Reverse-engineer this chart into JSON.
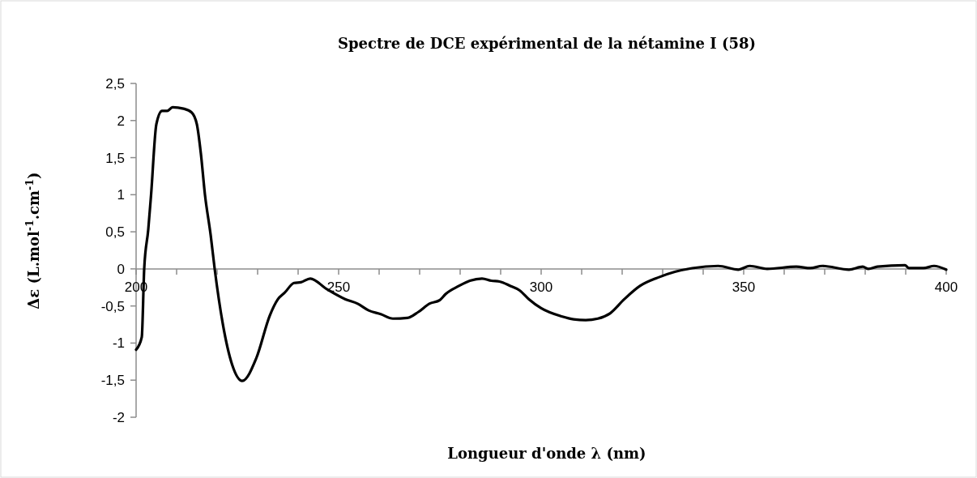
{
  "chart_data": {
    "type": "line",
    "title": "Spectre de DCE expérimental de la nétamine I (58)",
    "xlabel": "Longueur d'onde λ (nm)",
    "ylabel": "Δε (L.mol$^{-1}$.cm$^{-1}$)",
    "xlim": [
      200,
      400
    ],
    "xticks": [
      200,
      {
        "value": 210,
        "label": null
      },
      {
        "value": 220,
        "label": null
      },
      {
        "value": 230,
        "label": null
      },
      {
        "value": 240,
        "label": null
      },
      250,
      {
        "value": 260,
        "label": null
      },
      {
        "value": 270,
        "label": null
      },
      {
        "value": 280,
        "label": null
      },
      {
        "value": 290,
        "label": null
      },
      300,
      {
        "value": 310,
        "label": null
      },
      {
        "value": 320,
        "label": null
      },
      {
        "value": 330,
        "label": null
      },
      {
        "value": 340,
        "label": null
      },
      350,
      {
        "value": 360,
        "label": null
      },
      {
        "value": 370,
        "label": null
      },
      {
        "value": 380,
        "label": null
      },
      {
        "value": 390,
        "label": null
      },
      400
    ],
    "ylim": [
      -2,
      2.5
    ],
    "yticks": [
      {
        "value": -2,
        "label": "-2"
      },
      {
        "value": -1.5,
        "label": "-1,5"
      },
      {
        "value": -1,
        "label": "-1"
      },
      {
        "value": -0.5,
        "label": "-0,5"
      },
      {
        "value": 0,
        "label": "0"
      },
      {
        "value": 0.5,
        "label": "0,5"
      },
      {
        "value": 1,
        "label": "1"
      },
      {
        "value": 1.5,
        "label": "1,5"
      },
      {
        "value": 2,
        "label": "2"
      },
      {
        "value": 2.5,
        "label": "2,5"
      }
    ],
    "grid": false,
    "marker": "none",
    "line_style": "solid",
    "series": [
      {
        "color": "#000000",
        "x": [
          200,
          201.4,
          202,
          203,
          203.7,
          205,
          206.4,
          207.7,
          209,
          211.7,
          213.7,
          215,
          216,
          217,
          218.4,
          219.4,
          221.4,
          223.7,
          226.2,
          229.7,
          233,
          235,
          236.7,
          239,
          240.7,
          243,
          247,
          251.7,
          254.7,
          257.4,
          260.4,
          263.4,
          267,
          269.7,
          272.4,
          275,
          276.4,
          279.7,
          282.4,
          285.4,
          287.7,
          289.7,
          292.4,
          294.7,
          297,
          300,
          305,
          308,
          311,
          314,
          317,
          320.5,
          324.4,
          328.7,
          333,
          337.3,
          343.7,
          348.7,
          351.5,
          355.8,
          363,
          366.5,
          369.4,
          376,
          379.4,
          380.8,
          383,
          389.8,
          390.8,
          394.4,
          397,
          400
        ],
        "values": [
          -1.09,
          -0.92,
          0,
          0.53,
          1.0,
          1.95,
          2.13,
          2.13,
          2.18,
          2.16,
          2.11,
          1.95,
          1.55,
          1.0,
          0.46,
          0,
          -0.74,
          -1.29,
          -1.51,
          -1.2,
          -0.63,
          -0.41,
          -0.32,
          -0.19,
          -0.18,
          -0.13,
          -0.27,
          -0.41,
          -0.47,
          -0.56,
          -0.61,
          -0.67,
          -0.66,
          -0.58,
          -0.47,
          -0.42,
          -0.34,
          -0.23,
          -0.16,
          -0.13,
          -0.16,
          -0.17,
          -0.23,
          -0.29,
          -0.41,
          -0.53,
          -0.64,
          -0.68,
          -0.69,
          -0.67,
          -0.6,
          -0.41,
          -0.23,
          -0.12,
          -0.04,
          0.01,
          0.04,
          -0.01,
          0.04,
          0,
          0.03,
          0.01,
          0.04,
          -0.01,
          0.03,
          0,
          0.03,
          0.05,
          0.01,
          0.01,
          0.04,
          -0.01
        ]
      }
    ]
  }
}
